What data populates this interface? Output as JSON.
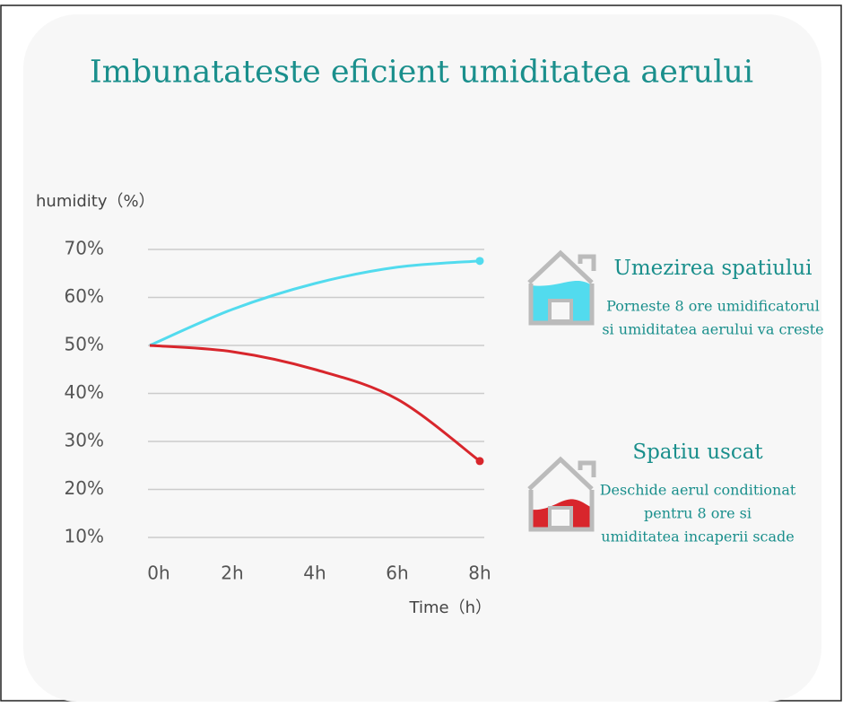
{
  "chart_data": {
    "type": "line",
    "title": "Imbunatateste eficient umiditatea aerului",
    "y_label": "humidity（%）",
    "x_label": "Time（h）",
    "x": [
      0,
      2,
      4,
      6,
      8
    ],
    "xlim": [
      0,
      8
    ],
    "xticks": [
      {
        "value": 0,
        "label": "0h"
      },
      {
        "value": 2,
        "label": "2h"
      },
      {
        "value": 4,
        "label": "4h"
      },
      {
        "value": 6,
        "label": "6h"
      },
      {
        "value": 8,
        "label": "8h"
      }
    ],
    "ylim": [
      10,
      70
    ],
    "yticks": [
      {
        "value": 10,
        "label": "10%"
      },
      {
        "value": 20,
        "label": "20%"
      },
      {
        "value": 30,
        "label": "30%"
      },
      {
        "value": 40,
        "label": "40%"
      },
      {
        "value": 50,
        "label": "50%"
      },
      {
        "value": 60,
        "label": "60%"
      },
      {
        "value": 70,
        "label": "70%"
      }
    ],
    "grid": true,
    "series": [
      {
        "color": "#52dbee",
        "values": [
          50,
          57.5,
          62.9,
          66.3,
          67.6
        ]
      },
      {
        "color": "#d8262c",
        "values": [
          50,
          48.7,
          45,
          38.8,
          25.9
        ]
      }
    ],
    "annotations": [
      {
        "title": "Umezirea spatiului",
        "text": [
          "Porneste 8 ore umidificatorul",
          "si umiditatea aerului va creste"
        ]
      },
      {
        "title": "Spatiu uscat",
        "text": [
          "Deschide aerul conditionat",
          "pentru 8 ore si",
          "umiditatea incaperii scade"
        ]
      }
    ]
  }
}
